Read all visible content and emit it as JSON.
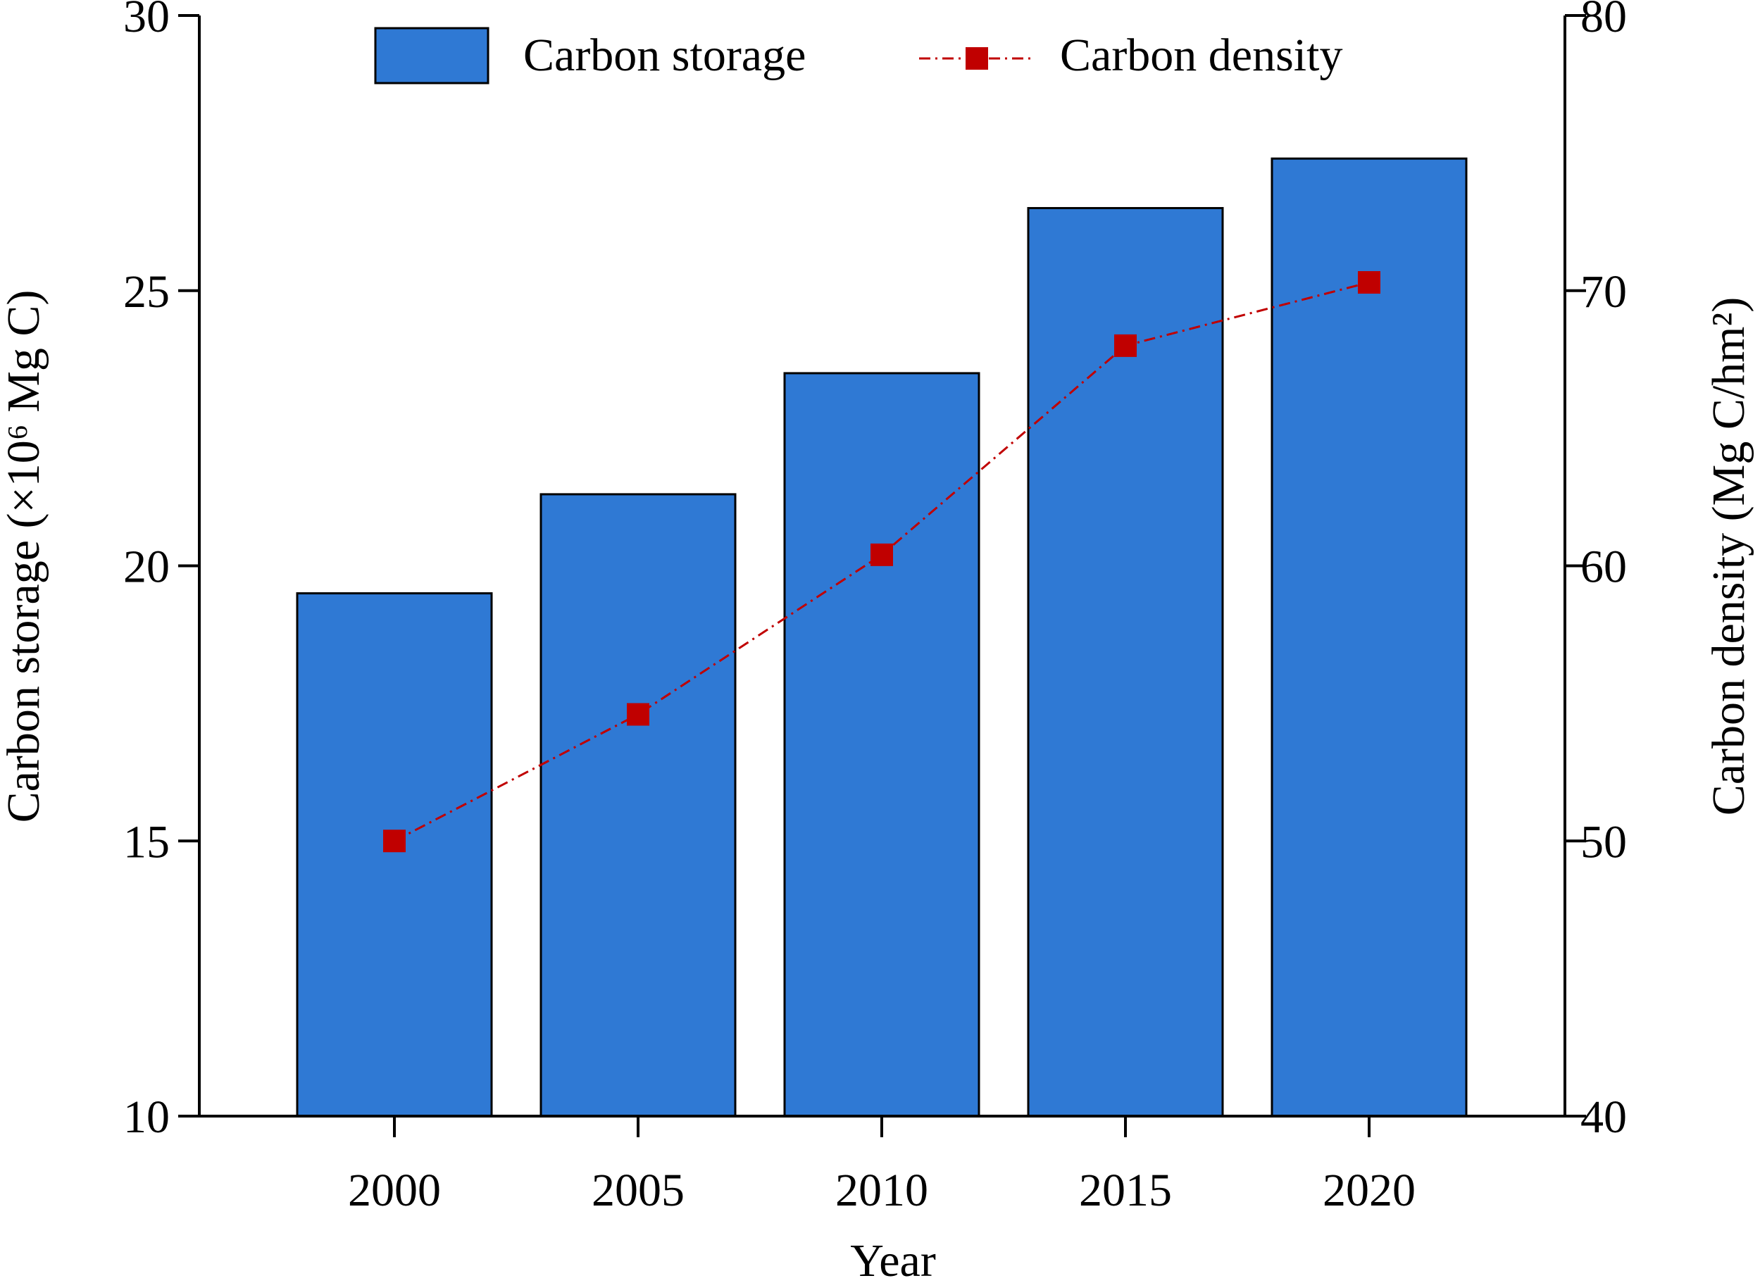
{
  "chart_data": {
    "type": "bar",
    "categories": [
      "2000",
      "2005",
      "2010",
      "2015",
      "2020"
    ],
    "xlabel": "Year",
    "ylabel_left": "Carbon storage (×10⁶ Mg C)",
    "ylabel_right": "Carbon density (Mg C/hm²)",
    "ylim_left": [
      10,
      30
    ],
    "ylim_right": [
      40,
      80
    ],
    "yticks_left": [
      "10",
      "15",
      "20",
      "25",
      "30"
    ],
    "yticks_right": [
      "40",
      "50",
      "60",
      "70",
      "80"
    ],
    "grid": false,
    "legend_position": "top",
    "series": [
      {
        "name": "Carbon storage",
        "type": "bar",
        "axis": "left",
        "color": "#2f79d4",
        "values": [
          19.5,
          21.3,
          23.5,
          26.5,
          27.4
        ]
      },
      {
        "name": "Carbon density",
        "type": "line",
        "axis": "right",
        "color": "#c00000",
        "marker": "square",
        "line_style": "dash-dot",
        "values": [
          50.0,
          54.6,
          60.4,
          68.0,
          70.3
        ]
      }
    ]
  }
}
